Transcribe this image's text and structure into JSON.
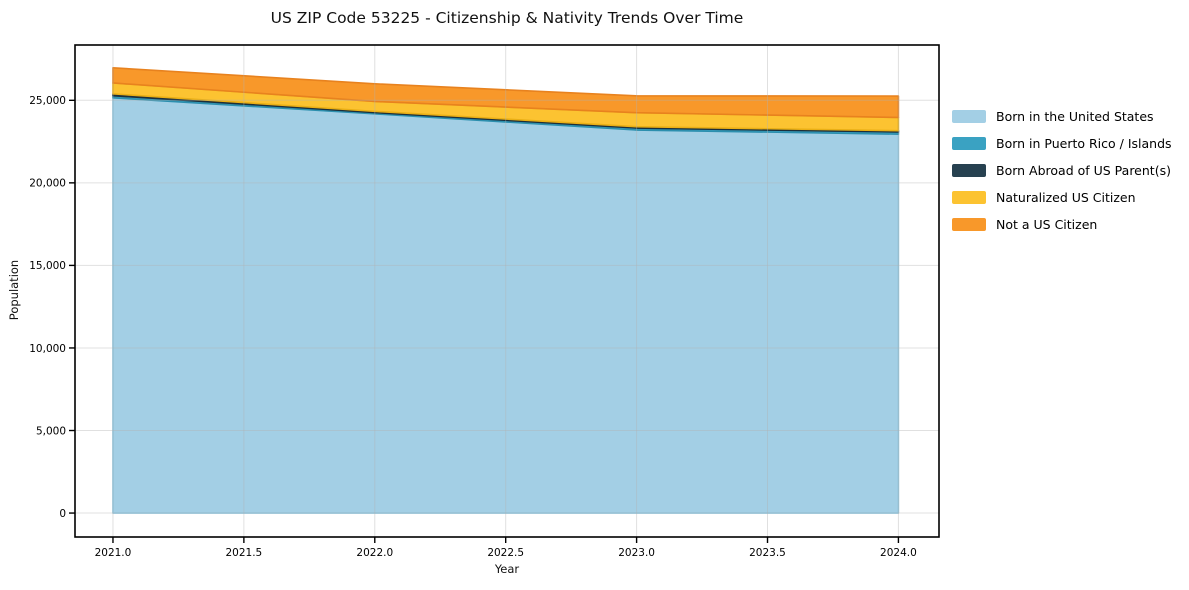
{
  "figure": {
    "title": "US ZIP Code 53225 - Citizenship & Nativity Trends Over Time",
    "background": "#ffffff"
  },
  "chart_data": {
    "type": "area",
    "stacked": true,
    "title": "US ZIP Code 53225 - Citizenship & Nativity Trends Over Time",
    "xlabel": "Year",
    "ylabel": "Population",
    "x": [
      2021,
      2022,
      2023,
      2024
    ],
    "series": [
      {
        "name": "Born in the United States",
        "color": "#a3cfe5",
        "edge": "#8ec6e0",
        "values": [
          25150,
          24180,
          23200,
          22950
        ]
      },
      {
        "name": "Born in Puerto Rico / Islands",
        "color": "#3aa2c2",
        "edge": "#2c8fae",
        "values": [
          130,
          80,
          120,
          130
        ]
      },
      {
        "name": "Born Abroad of US Parent(s)",
        "color": "#274150",
        "edge": "#1c2f3a",
        "values": [
          110,
          70,
          80,
          80
        ]
      },
      {
        "name": "Naturalized US Citizen",
        "color": "#fcc331",
        "edge": "#eaaf15",
        "values": [
          660,
          600,
          850,
          800
        ]
      },
      {
        "name": "Not a US Citizen",
        "color": "#f8982a",
        "edge": "#e8821e",
        "values": [
          920,
          1070,
          1020,
          1300
        ]
      }
    ],
    "totals": [
      26970,
      26000,
      25270,
      25260
    ],
    "xlim": [
      2020.855,
      2024.155
    ],
    "ylim": [
      -1450,
      28350
    ],
    "x_ticks": [
      2021.0,
      2021.5,
      2022.0,
      2022.5,
      2023.0,
      2023.5,
      2024.0
    ],
    "x_tick_labels": [
      "2021.0",
      "2021.5",
      "2022.0",
      "2022.5",
      "2023.0",
      "2023.5",
      "2024.0"
    ],
    "y_ticks": [
      0,
      5000,
      10000,
      15000,
      20000,
      25000
    ],
    "y_tick_labels": [
      "0",
      "5,000",
      "10,000",
      "15,000",
      "20,000",
      "25,000"
    ],
    "grid": true,
    "grid_color": "rgba(178,178,178,0.40)",
    "frame_color": "#000000",
    "legend_position": "right-outside"
  }
}
